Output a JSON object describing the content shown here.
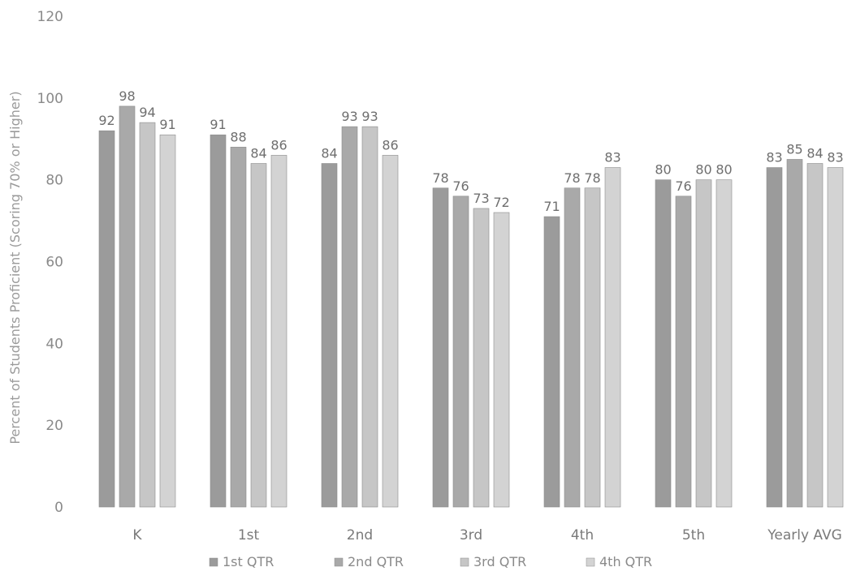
{
  "chart_data": {
    "type": "bar",
    "title": "",
    "xlabel": "",
    "ylabel": "Percent of Students Proficient (Scoring 70% or Higher)",
    "ylim": [
      0,
      120
    ],
    "yticks": [
      "0",
      "20",
      "40",
      "60",
      "80",
      "100",
      "120"
    ],
    "grid": false,
    "legend_position": "bottom",
    "categories": [
      "K",
      "1st",
      "2nd",
      "3rd",
      "4th",
      "5th",
      "Yearly AVG"
    ],
    "series": [
      {
        "name": "1st QTR",
        "color": "#9b9b9b",
        "values": [
          92,
          91,
          84,
          78,
          71,
          80,
          83
        ]
      },
      {
        "name": "2nd QTR",
        "color": "#a9a9a9",
        "values": [
          98,
          88,
          93,
          76,
          78,
          76,
          85
        ]
      },
      {
        "name": "3rd QTR",
        "color": "#c6c6c6",
        "values": [
          94,
          84,
          93,
          73,
          78,
          80,
          84
        ]
      },
      {
        "name": "4th QTR",
        "color": "#d3d3d3",
        "values": [
          91,
          86,
          86,
          72,
          83,
          80,
          83
        ]
      }
    ]
  }
}
